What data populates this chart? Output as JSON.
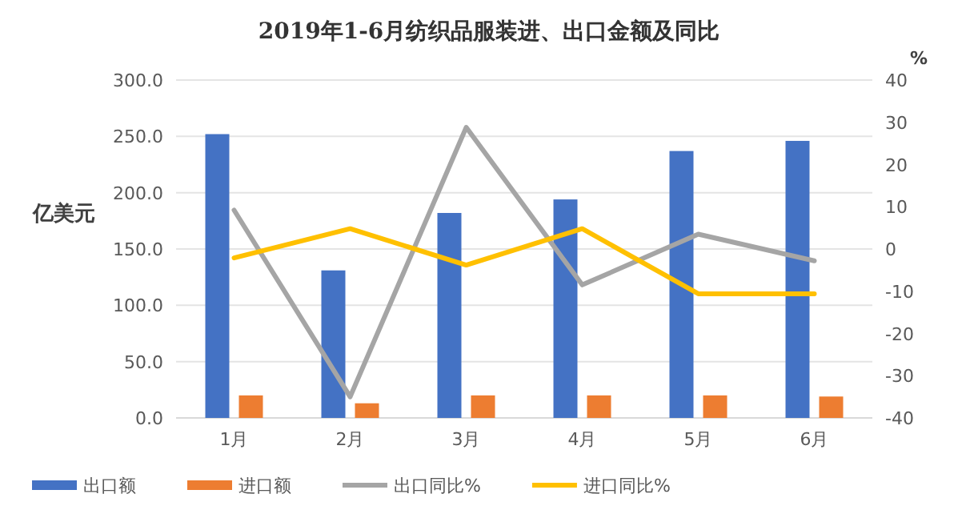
{
  "chart_data": {
    "type": "bar",
    "title": "2019年1-6月纺织品服装进、出口金额及同比",
    "ylabel": "亿美元",
    "y2label": "%",
    "categories": [
      "1月",
      "2月",
      "3月",
      "4月",
      "5月",
      "6月"
    ],
    "series": [
      {
        "name": "出口额",
        "color": "#4472c4",
        "values": [
          252,
          131,
          182,
          194,
          237,
          246
        ]
      },
      {
        "name": "进口额",
        "color": "#ed7d31",
        "values": [
          20,
          13,
          20,
          20,
          20,
          19
        ]
      },
      {
        "name": "出口同比%",
        "type": "line",
        "axis": "y2",
        "color": "#a5a5a5",
        "values": [
          9.2,
          -35,
          28.8,
          -8.5,
          3.5,
          -2.8
        ]
      },
      {
        "name": "进口同比%",
        "type": "line",
        "axis": "y2",
        "color": "#ffc000",
        "values": [
          -2.1,
          4.8,
          -3.8,
          4.8,
          -10.6,
          -10.6
        ]
      }
    ],
    "ylim": [
      0,
      300
    ],
    "yticks": [
      {
        "value": 0,
        "label": "0.0"
      },
      {
        "value": 50,
        "label": "50.0"
      },
      {
        "value": 100,
        "label": "100.0"
      },
      {
        "value": 150,
        "label": "150.0"
      },
      {
        "value": 200,
        "label": "200.0"
      },
      {
        "value": 250,
        "label": "250.0"
      },
      {
        "value": 300,
        "label": "300.0"
      }
    ],
    "y2lim": [
      -40,
      40
    ],
    "y2ticks": [
      -40,
      -30,
      -20,
      -10,
      0,
      10,
      20,
      30,
      40
    ],
    "grid": "y",
    "legend": "bottom"
  }
}
